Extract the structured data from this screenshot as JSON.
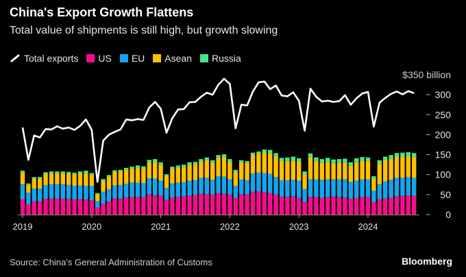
{
  "chart_data": {
    "type": "bar",
    "stacked": true,
    "title": "China's Export Growth Flattens",
    "subtitle": "Total value of shipments is still high, but growth slowing",
    "unit_label": "$350 billion",
    "ylim": [
      0,
      350
    ],
    "yticks": [
      0,
      50,
      100,
      150,
      200,
      250,
      300
    ],
    "xticks": [
      "2019",
      "2020",
      "2021",
      "2022",
      "2023",
      "2024"
    ],
    "x_start": "2019-01",
    "x_end": "2024-09",
    "grid": false,
    "legend_placement": "top-left",
    "legend": [
      "Total exports",
      "US",
      "EU",
      "Asean",
      "Russia"
    ],
    "line": {
      "name": "Total exports",
      "color": "#ffffff",
      "values": [
        218,
        137,
        198,
        193,
        214,
        213,
        221,
        215,
        218,
        212,
        222,
        238,
        212,
        82,
        185,
        200,
        207,
        213,
        238,
        236,
        239,
        237,
        268,
        282,
        265,
        205,
        241,
        263,
        264,
        281,
        282,
        295,
        305,
        300,
        325,
        340,
        327,
        216,
        275,
        273,
        308,
        331,
        333,
        314,
        323,
        298,
        296,
        306,
        285,
        210,
        315,
        295,
        283,
        285,
        282,
        284,
        299,
        275,
        291,
        303,
        307,
        220,
        280,
        292,
        302,
        308,
        301,
        309,
        304
      ]
    },
    "series": [
      {
        "name": "US",
        "color": "#f70c8c",
        "values": [
          38,
          26,
          33,
          33,
          39,
          40,
          40,
          40,
          39,
          38,
          39,
          38,
          36,
          18,
          27,
          33,
          40,
          40,
          43,
          44,
          44,
          44,
          51,
          49,
          47,
          37,
          43,
          44,
          46,
          48,
          49,
          52,
          51,
          50,
          54,
          52,
          50,
          42,
          51,
          50,
          57,
          58,
          56,
          54,
          50,
          45,
          44,
          46,
          42,
          32,
          44,
          44,
          42,
          44,
          45,
          44,
          43,
          40,
          42,
          44,
          44,
          31,
          38,
          40,
          42,
          46,
          47,
          48,
          47
        ]
      },
      {
        "name": "EU",
        "color": "#14a5f0",
        "values": [
          38,
          29,
          32,
          32,
          35,
          36,
          36,
          36,
          35,
          34,
          34,
          34,
          36,
          16,
          30,
          30,
          33,
          34,
          34,
          36,
          36,
          35,
          40,
          41,
          38,
          30,
          35,
          36,
          35,
          37,
          37,
          40,
          41,
          37,
          42,
          43,
          38,
          30,
          37,
          36,
          46,
          47,
          48,
          48,
          44,
          41,
          42,
          41,
          43,
          32,
          45,
          44,
          45,
          44,
          43,
          44,
          45,
          42,
          43,
          44,
          44,
          29,
          38,
          43,
          45,
          46,
          45,
          46,
          45
        ]
      },
      {
        "name": "Asean",
        "color": "#ffc000",
        "values": [
          30,
          20,
          25,
          25,
          28,
          28,
          28,
          28,
          29,
          29,
          30,
          32,
          28,
          17,
          28,
          32,
          34,
          34,
          36,
          36,
          38,
          37,
          40,
          42,
          40,
          30,
          37,
          38,
          38,
          40,
          40,
          41,
          45,
          43,
          47,
          49,
          44,
          35,
          43,
          44,
          47,
          48,
          52,
          52,
          52,
          48,
          48,
          48,
          48,
          37,
          55,
          45,
          43,
          44,
          41,
          42,
          43,
          40,
          46,
          46,
          47,
          30,
          52,
          54,
          53,
          53,
          53,
          52,
          52
        ]
      },
      {
        "name": "Russia",
        "color": "#3fe890",
        "values": [
          4,
          3,
          4,
          4,
          4,
          4,
          4,
          4,
          4,
          4,
          5,
          6,
          4,
          3,
          4,
          4,
          4,
          4,
          4,
          4,
          5,
          5,
          6,
          7,
          6,
          4,
          5,
          5,
          6,
          6,
          6,
          6,
          6,
          6,
          6,
          7,
          7,
          5,
          5,
          4,
          5,
          5,
          7,
          8,
          8,
          8,
          9,
          10,
          8,
          7,
          9,
          10,
          9,
          10,
          9,
          9,
          9,
          9,
          10,
          10,
          8,
          6,
          8,
          8,
          9,
          9,
          10,
          10,
          10
        ]
      }
    ]
  },
  "footer": {
    "source": "Source: China's General Administration of Customs",
    "logo": "Bloomberg"
  }
}
